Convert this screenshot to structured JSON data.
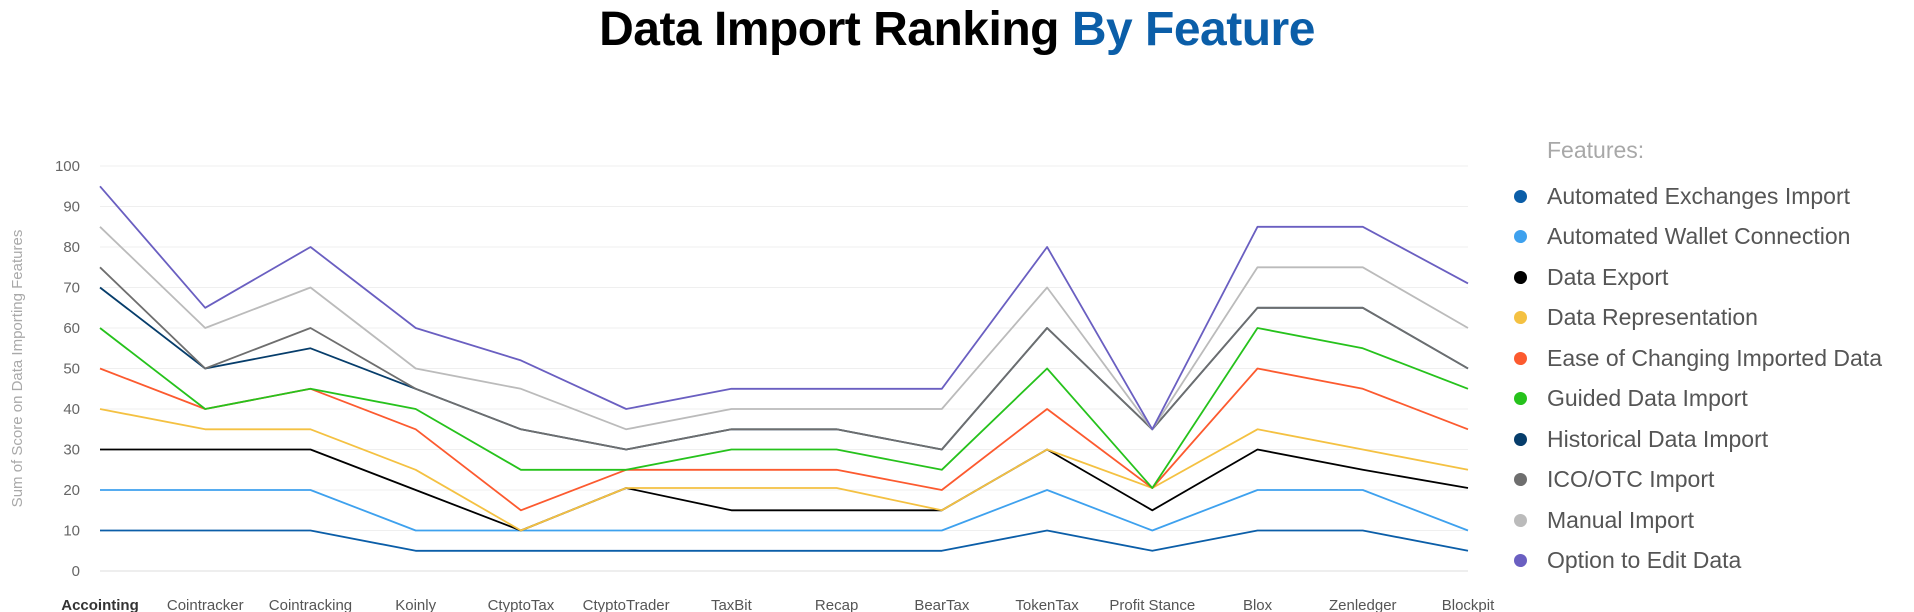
{
  "title": {
    "main": "Data Import Ranking",
    "accent": "By Feature"
  },
  "chart_data": {
    "type": "line",
    "title": "Data Import Ranking By Feature",
    "xlabel": "",
    "ylabel": "Sum of Score on Data Importing Features",
    "ylim": [
      0,
      100
    ],
    "yticks": [
      0,
      10,
      20,
      30,
      40,
      50,
      60,
      70,
      80,
      90,
      100
    ],
    "grid": true,
    "legend_title": "Features:",
    "legend_position": "right",
    "stacked": true,
    "categories": [
      "Accointing",
      "Cointracker",
      "Cointracking",
      "Koinly",
      "CtyptoTax",
      "CtyptoTrader",
      "TaxBit",
      "Recap",
      "BearTax",
      "TokenTax",
      "Profit Stance",
      "Blox",
      "Zenledger",
      "Blockpit"
    ],
    "series": [
      {
        "name": "Automated Exchanges Import",
        "color": "#0b5ea8",
        "values": [
          10,
          10,
          10,
          5,
          5,
          5,
          5,
          5,
          5,
          10,
          5,
          10,
          10,
          5
        ]
      },
      {
        "name": "Automated Wallet Connection",
        "color": "#3ea1ee",
        "values": [
          20,
          20,
          20,
          10,
          10,
          10,
          10,
          10,
          10,
          20,
          10,
          20,
          20,
          10
        ]
      },
      {
        "name": "Data Export",
        "color": "#000000",
        "values": [
          30,
          30,
          30,
          20,
          10,
          20.5,
          15,
          15,
          15,
          30,
          15,
          30,
          25,
          20.5
        ]
      },
      {
        "name": "Data Representation",
        "color": "#f4c142",
        "values": [
          40,
          35,
          35,
          25,
          10,
          20.5,
          20.5,
          20.5,
          15,
          30,
          20.5,
          35,
          30,
          25
        ]
      },
      {
        "name": "Ease of Changing Imported Data",
        "color": "#fc5a2f",
        "values": [
          50,
          40,
          45,
          35,
          15,
          25,
          25,
          25,
          20,
          40,
          20.5,
          50,
          45,
          35
        ]
      },
      {
        "name": "Guided Data Import",
        "color": "#26c21c",
        "values": [
          60,
          40,
          45,
          40,
          25,
          25,
          30,
          30,
          25,
          50,
          20.5,
          60,
          55,
          45
        ]
      },
      {
        "name": "Historical Data Import",
        "color": "#063d6b",
        "values": [
          70,
          50,
          55,
          45,
          35,
          30,
          35,
          35,
          30,
          60,
          35,
          65,
          65,
          50
        ]
      },
      {
        "name": "ICO/OTC Import",
        "color": "#6e6e6e",
        "values": [
          75,
          50,
          60,
          45,
          35,
          30,
          35,
          35,
          30,
          60,
          35,
          65,
          65,
          50
        ]
      },
      {
        "name": "Manual Import",
        "color": "#bbbbbb",
        "values": [
          85,
          60,
          70,
          50,
          45,
          35,
          40,
          40,
          40,
          70,
          35,
          75,
          75,
          60
        ]
      },
      {
        "name": "Option to Edit Data",
        "color": "#6a5fc1",
        "values": [
          95,
          65,
          80,
          60,
          52,
          40,
          45,
          45,
          45,
          80,
          35,
          85,
          85,
          71
        ]
      }
    ]
  }
}
